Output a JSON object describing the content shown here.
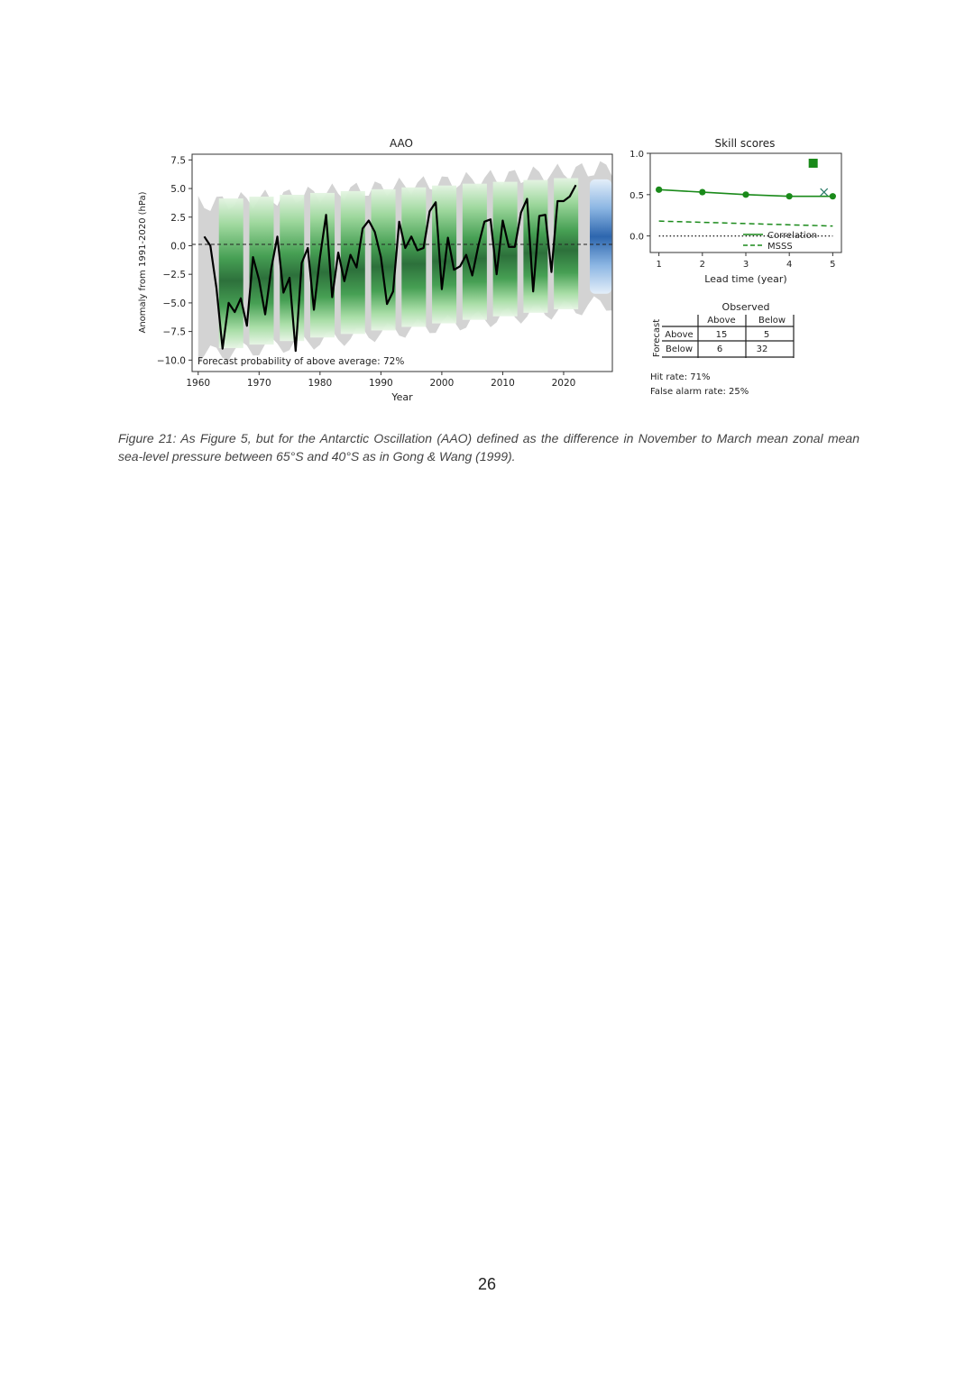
{
  "chart_data": [
    {
      "type": "line",
      "title": "AAO",
      "xlabel": "Year",
      "ylabel": "Anomaly from 1991-2020 (hPa)",
      "xlim": [
        1959,
        2028
      ],
      "ylim": [
        -11,
        8
      ],
      "x_ticks": [
        "1960",
        "1970",
        "1980",
        "1990",
        "2000",
        "2010",
        "2020"
      ],
      "y_ticks": [
        "7.5",
        "5.0",
        "2.5",
        "0.0",
        "−2.5",
        "−5.0",
        "−7.5",
        "−10.0"
      ],
      "zero_line": "dashed",
      "annotation": "Forecast probability of above average: 72%",
      "series": [
        {
          "name": "",
          "color": "#000000",
          "x": [
            1961,
            1962,
            1963,
            1964,
            1965,
            1966,
            1967,
            1968,
            1969,
            1970,
            1971,
            1972,
            1973,
            1974,
            1975,
            1976,
            1977,
            1978,
            1979,
            1980,
            1981,
            1982,
            1983,
            1984,
            1985,
            1986,
            1987,
            1988,
            1989,
            1990,
            1991,
            1992,
            1993,
            1994,
            1995,
            1996,
            1997,
            1998,
            1999,
            2000,
            2001,
            2002,
            2003,
            2004,
            2005,
            2006,
            2007,
            2008,
            2009,
            2010,
            2011,
            2012,
            2013,
            2014,
            2015,
            2016,
            2017,
            2018,
            2019,
            2020,
            2021,
            2022
          ],
          "y": [
            0.8,
            0.0,
            -3.7,
            -9.0,
            -5.0,
            -5.8,
            -4.6,
            -7.0,
            -1.0,
            -3.0,
            -6.0,
            -2.0,
            0.8,
            -4.1,
            -2.8,
            -9.2,
            -1.5,
            -0.2,
            -5.6,
            -1.0,
            2.7,
            -4.5,
            -0.6,
            -3.1,
            -0.8,
            -1.9,
            1.5,
            2.2,
            1.2,
            -1.0,
            -5.1,
            -4.0,
            2.1,
            -0.2,
            0.8,
            -0.4,
            -0.2,
            3.0,
            3.8,
            -3.8,
            0.7,
            -2.1,
            -1.8,
            -0.8,
            -2.6,
            0.0,
            2.1,
            2.3,
            -2.5,
            2.2,
            -0.1,
            -0.1,
            2.9,
            4.1,
            -4.0,
            2.6,
            2.7,
            -2.3,
            3.9,
            3.9,
            4.3,
            5.3
          ]
        }
      ],
      "colors": {
        "envelope": "#d3d3d3",
        "hindcast_plume": "#2e8b3a",
        "forecast_plume": "#2f6fb8",
        "observed": "#000000"
      }
    },
    {
      "type": "line",
      "title": "Skill scores",
      "xlabel": "Lead time (year)",
      "ylabel": "",
      "xlim": [
        0.8,
        5.2
      ],
      "ylim": [
        -0.2,
        1.0
      ],
      "x_ticks": [
        "1",
        "2",
        "3",
        "4",
        "5"
      ],
      "y_ticks": [
        "1.0",
        "0.5",
        "0.0"
      ],
      "legend_position": "lower-right",
      "series": [
        {
          "name": "Correlation",
          "style": "solid",
          "color": "#1a8a1a",
          "x": [
            1,
            2,
            3,
            4,
            5
          ],
          "y": [
            0.56,
            0.53,
            0.5,
            0.48,
            0.48
          ]
        },
        {
          "name": "MSSS",
          "style": "dashed",
          "color": "#1a8a1a",
          "x": [
            1,
            5
          ],
          "y": [
            0.18,
            0.12
          ]
        }
      ],
      "reference_line": {
        "style": "dotted",
        "y": 0.0
      },
      "extra_markers": [
        {
          "marker": "square",
          "color": "#1a8a1a",
          "x": 4.55,
          "y": 0.88
        },
        {
          "marker": "x",
          "color": "#2e7d6b",
          "x": 4.8,
          "y": 0.53
        }
      ]
    }
  ],
  "contingency": {
    "observed_label": "Observed",
    "forecast_label": "Forecast",
    "col_headers": [
      "Above",
      "Below"
    ],
    "rows": [
      {
        "label": "Above",
        "values": [
          "15",
          "5"
        ]
      },
      {
        "label": "Below",
        "values": [
          "6",
          "32"
        ]
      }
    ],
    "hit_rate": "Hit rate: 71%",
    "false_alarm_rate": "False alarm rate: 25%"
  },
  "caption": "Figure 21: As Figure 5, but for the Antarctic Oscillation (AAO) defined as the difference in November to March mean zonal mean sea-level pressure between 65°S and 40°S as in Gong & Wang (1999).",
  "page_number": "26"
}
